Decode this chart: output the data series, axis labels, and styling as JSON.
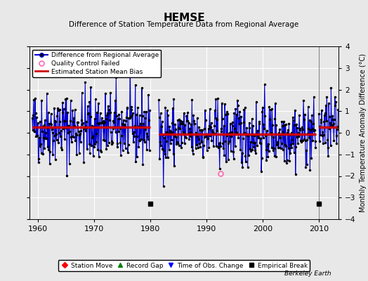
{
  "title": "HEMSE",
  "subtitle": "Difference of Station Temperature Data from Regional Average",
  "ylabel": "Monthly Temperature Anomaly Difference (°C)",
  "ylim": [
    -4,
    4
  ],
  "xlim": [
    1958.5,
    2013.5
  ],
  "background_color": "#e8e8e8",
  "plot_bg_color": "#e8e8e8",
  "grid_color": "white",
  "seed": 42,
  "segment1_start": 1959.0,
  "segment1_end": 1980.0,
  "segment1_bias": 0.25,
  "segment2_start": 1981.5,
  "segment2_end": 2009.5,
  "segment2_bias": -0.05,
  "segment3_start": 2010.0,
  "segment3_end": 2013.2,
  "segment3_bias": 0.25,
  "empirical_breaks": [
    1980.0,
    2010.0
  ],
  "qc_fail_x": 1992.5,
  "qc_fail_y": -1.9,
  "vertical_line_x": 2010.0,
  "bias_line_color": "#cc0000",
  "data_line_color": "#0000cc",
  "data_fill_color": "#aaaaff",
  "marker_color": "#000000",
  "bias_linewidth": 2.5,
  "data_linewidth": 0.8,
  "footer_text": "Berkeley Earth",
  "legend1_items": [
    "Difference from Regional Average",
    "Quality Control Failed",
    "Estimated Station Mean Bias"
  ],
  "legend2_items": [
    "Station Move",
    "Record Gap",
    "Time of Obs. Change",
    "Empirical Break"
  ]
}
